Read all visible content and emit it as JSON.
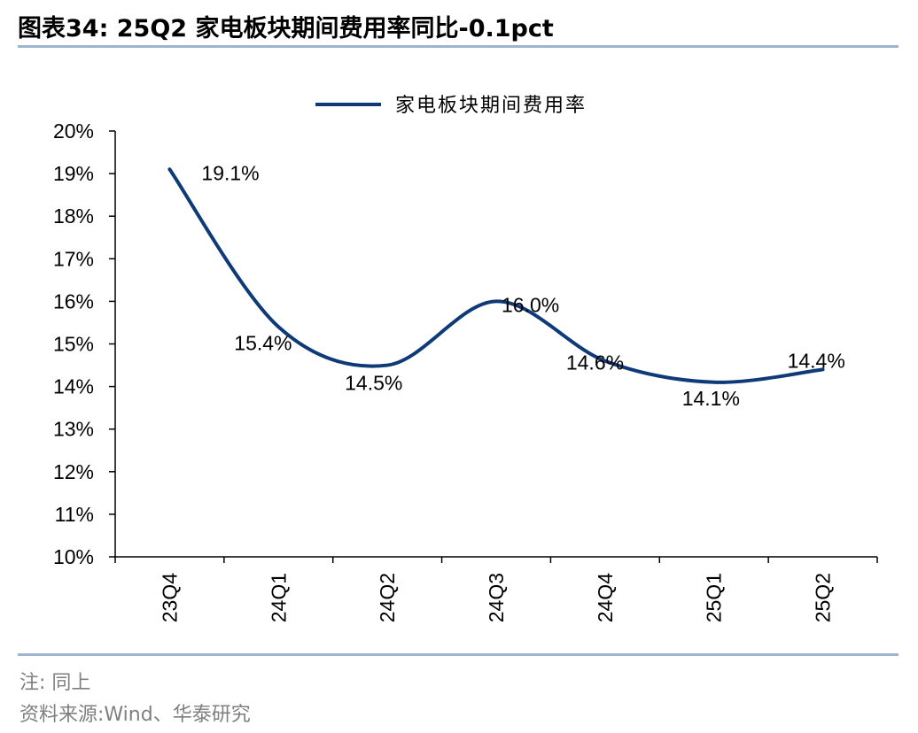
{
  "title": "图表34:   25Q2 家电板块期间费用率同比-0.1pct",
  "note": "注:  同上",
  "source": "资料来源:Wind、华泰研究",
  "colors": {
    "series": "#0e3a78",
    "rule": "#9fb4cf",
    "axis": "#000000"
  },
  "chart_data": {
    "type": "line",
    "title": "",
    "xlabel": "",
    "ylabel": "",
    "categories": [
      "23Q4",
      "24Q1",
      "24Q2",
      "24Q3",
      "24Q4",
      "25Q1",
      "25Q2"
    ],
    "series": [
      {
        "name": "家电板块期间费用率",
        "values": [
          19.1,
          15.4,
          14.5,
          16.0,
          14.6,
          14.1,
          14.4
        ],
        "labels": [
          "19.1%",
          "15.4%",
          "14.5%",
          "16.0%",
          "14.6%",
          "14.1%",
          "14.4%"
        ]
      }
    ],
    "ylim": [
      10,
      20
    ],
    "yticks": [
      10,
      11,
      12,
      13,
      14,
      15,
      16,
      17,
      18,
      19,
      20
    ],
    "ytick_labels": [
      "10%",
      "11%",
      "12%",
      "13%",
      "14%",
      "15%",
      "16%",
      "17%",
      "18%",
      "19%",
      "20%"
    ],
    "legend": "top-center",
    "grid": false,
    "smooth": true
  }
}
